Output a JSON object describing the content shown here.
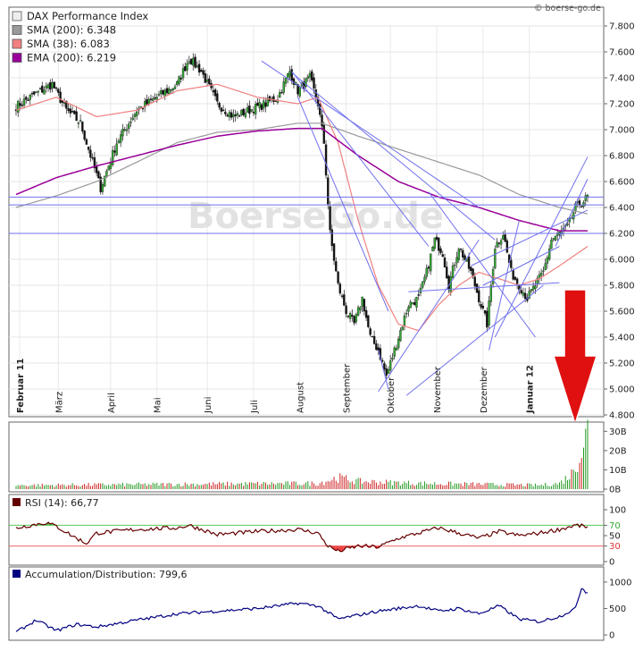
{
  "watermark": "© boerse-go.de",
  "background_logo": "BoerseGo.de",
  "chart_data": [
    {
      "type": "candlestick",
      "legend": [
        {
          "label": "DAX Performance Index",
          "color": "#eeeeee"
        },
        {
          "label": "SMA (200): 6.348",
          "color": "#999999"
        },
        {
          "label": "SMA (38): 6.083",
          "color": "#f08080"
        },
        {
          "label": "EMA (200): 6.219",
          "color": "#990099"
        }
      ],
      "ylim": [
        4800,
        7800
      ],
      "yticks": [
        "7.800",
        "7.600",
        "7.400",
        "7.200",
        "7.000",
        "6.800",
        "6.600",
        "6.400",
        "6.200",
        "6.000",
        "5.800",
        "5.600",
        "5.400",
        "5.200",
        "5.000",
        "4.800"
      ],
      "months": [
        {
          "label": "Februar 11",
          "bold": true
        },
        {
          "label": "März",
          "bold": false
        },
        {
          "label": "April",
          "bold": false
        },
        {
          "label": "Mai",
          "bold": false
        },
        {
          "label": "Juni",
          "bold": false
        },
        {
          "label": "Juli",
          "bold": false
        },
        {
          "label": "August",
          "bold": false
        },
        {
          "label": "September",
          "bold": false
        },
        {
          "label": "Oktober",
          "bold": false
        },
        {
          "label": "November",
          "bold": false
        },
        {
          "label": "Dezember",
          "bold": false
        },
        {
          "label": "Januar 12",
          "bold": true
        }
      ],
      "close_anchors": [
        [
          0,
          7180
        ],
        [
          10,
          7280
        ],
        [
          18,
          7350
        ],
        [
          25,
          7150
        ],
        [
          32,
          7050
        ],
        [
          38,
          6750
        ],
        [
          42,
          6550
        ],
        [
          50,
          6900
        ],
        [
          60,
          7150
        ],
        [
          70,
          7250
        ],
        [
          80,
          7350
        ],
        [
          86,
          7550
        ],
        [
          92,
          7450
        ],
        [
          100,
          7200
        ],
        [
          108,
          7100
        ],
        [
          116,
          7150
        ],
        [
          124,
          7200
        ],
        [
          130,
          7250
        ],
        [
          136,
          7450
        ],
        [
          140,
          7300
        ],
        [
          146,
          7400
        ],
        [
          150,
          7200
        ],
        [
          153,
          6900
        ],
        [
          156,
          6200
        ],
        [
          160,
          5800
        ],
        [
          164,
          5600
        ],
        [
          168,
          5500
        ],
        [
          172,
          5700
        ],
        [
          176,
          5400
        ],
        [
          180,
          5300
        ],
        [
          184,
          5100
        ],
        [
          190,
          5400
        ],
        [
          195,
          5650
        ],
        [
          200,
          5700
        ],
        [
          204,
          5900
        ],
        [
          208,
          6150
        ],
        [
          212,
          6050
        ],
        [
          215,
          5800
        ],
        [
          220,
          6100
        ],
        [
          226,
          5900
        ],
        [
          230,
          5700
        ],
        [
          234,
          5500
        ],
        [
          238,
          6100
        ],
        [
          242,
          6200
        ],
        [
          246,
          5900
        ],
        [
          250,
          5800
        ],
        [
          254,
          5700
        ],
        [
          258,
          5800
        ],
        [
          262,
          5900
        ],
        [
          266,
          6150
        ],
        [
          270,
          6200
        ],
        [
          274,
          6250
        ],
        [
          278,
          6400
        ],
        [
          282,
          6450
        ],
        [
          284,
          6480
        ]
      ],
      "sma200": [
        [
          0,
          6400
        ],
        [
          20,
          6490
        ],
        [
          40,
          6600
        ],
        [
          60,
          6750
        ],
        [
          80,
          6900
        ],
        [
          100,
          6980
        ],
        [
          120,
          7000
        ],
        [
          140,
          7050
        ],
        [
          152,
          7050
        ],
        [
          170,
          6950
        ],
        [
          190,
          6850
        ],
        [
          210,
          6750
        ],
        [
          230,
          6650
        ],
        [
          250,
          6500
        ],
        [
          270,
          6400
        ],
        [
          284,
          6350
        ]
      ],
      "sma38": [
        [
          0,
          7150
        ],
        [
          20,
          7250
        ],
        [
          40,
          7100
        ],
        [
          60,
          7150
        ],
        [
          80,
          7300
        ],
        [
          100,
          7350
        ],
        [
          120,
          7250
        ],
        [
          140,
          7200
        ],
        [
          150,
          7250
        ],
        [
          160,
          6900
        ],
        [
          170,
          6300
        ],
        [
          180,
          5800
        ],
        [
          190,
          5500
        ],
        [
          200,
          5450
        ],
        [
          210,
          5650
        ],
        [
          220,
          5800
        ],
        [
          230,
          5900
        ],
        [
          240,
          5850
        ],
        [
          250,
          5800
        ],
        [
          260,
          5850
        ],
        [
          270,
          5950
        ],
        [
          284,
          6100
        ]
      ],
      "ema200": [
        [
          0,
          6500
        ],
        [
          20,
          6630
        ],
        [
          40,
          6720
        ],
        [
          60,
          6800
        ],
        [
          80,
          6880
        ],
        [
          100,
          6950
        ],
        [
          120,
          6990
        ],
        [
          140,
          7010
        ],
        [
          152,
          7010
        ],
        [
          170,
          6800
        ],
        [
          190,
          6600
        ],
        [
          210,
          6480
        ],
        [
          230,
          6400
        ],
        [
          250,
          6300
        ],
        [
          270,
          6220
        ],
        [
          284,
          6220
        ]
      ],
      "hlines": [
        6480,
        6420,
        6200
      ],
      "trendlines": [
        [
          [
            122,
            7530
          ],
          [
            230,
            6400
          ]
        ],
        [
          [
            137,
            7440
          ],
          [
            238,
            6150
          ]
        ],
        [
          [
            137,
            7450
          ],
          [
            205,
            6100
          ]
        ],
        [
          [
            140,
            7250
          ],
          [
            185,
            5600
          ]
        ],
        [
          [
            180,
            5300
          ],
          [
            185,
            5000
          ]
        ],
        [
          [
            180,
            4980
          ],
          [
            230,
            6150
          ]
        ],
        [
          [
            194,
            4950
          ],
          [
            262,
            5800
          ]
        ],
        [
          [
            195,
            5750
          ],
          [
            270,
            5820
          ]
        ],
        [
          [
            205,
            6520
          ],
          [
            258,
            5400
          ]
        ],
        [
          [
            235,
            5300
          ],
          [
            250,
            6300
          ]
        ],
        [
          [
            232,
            5800
          ],
          [
            270,
            6100
          ]
        ],
        [
          [
            268,
            6100
          ],
          [
            284,
            6620
          ]
        ],
        [
          [
            238,
            5400
          ],
          [
            284,
            6790
          ]
        ],
        [
          [
            226,
            5950
          ],
          [
            284,
            6380
          ]
        ]
      ],
      "arrow_color": "#e01010",
      "color_up": "#33aa33",
      "color_down": "#111111",
      "line_color": "#7070ee"
    },
    {
      "type": "bar",
      "yticks": [
        "30B",
        "20B",
        "10B",
        "0B"
      ],
      "ylim": [
        0,
        32
      ],
      "anchors": [
        [
          0,
          2
        ],
        [
          150,
          3
        ],
        [
          160,
          6
        ],
        [
          170,
          4
        ],
        [
          200,
          3
        ],
        [
          260,
          2
        ],
        [
          270,
          3
        ],
        [
          276,
          8
        ],
        [
          280,
          18
        ],
        [
          284,
          30
        ]
      ]
    },
    {
      "type": "line",
      "label": "RSI (14): 66,77",
      "legend_color": "#660000",
      "yticks": [
        "100",
        "70",
        "50",
        "30",
        "0"
      ],
      "ylim": [
        0,
        100
      ],
      "lines": [
        70,
        30
      ],
      "anchors": [
        [
          0,
          65
        ],
        [
          10,
          72
        ],
        [
          15,
          75
        ],
        [
          20,
          68
        ],
        [
          30,
          45
        ],
        [
          35,
          35
        ],
        [
          40,
          55
        ],
        [
          60,
          62
        ],
        [
          80,
          65
        ],
        [
          86,
          70
        ],
        [
          100,
          52
        ],
        [
          120,
          58
        ],
        [
          140,
          62
        ],
        [
          150,
          55
        ],
        [
          155,
          30
        ],
        [
          160,
          20
        ],
        [
          170,
          30
        ],
        [
          180,
          28
        ],
        [
          190,
          45
        ],
        [
          200,
          55
        ],
        [
          210,
          65
        ],
        [
          220,
          55
        ],
        [
          230,
          45
        ],
        [
          240,
          58
        ],
        [
          250,
          50
        ],
        [
          260,
          55
        ],
        [
          270,
          62
        ],
        [
          278,
          70
        ],
        [
          284,
          66.77
        ]
      ]
    },
    {
      "type": "line",
      "label": "Accumulation/Distribution: 799,6",
      "legend_color": "#000080",
      "yticks": [
        "1000",
        "500",
        "0"
      ],
      "ylim": [
        0,
        1100
      ],
      "anchors": [
        [
          0,
          50
        ],
        [
          10,
          280
        ],
        [
          20,
          80
        ],
        [
          30,
          200
        ],
        [
          40,
          150
        ],
        [
          60,
          280
        ],
        [
          80,
          400
        ],
        [
          100,
          450
        ],
        [
          120,
          500
        ],
        [
          140,
          600
        ],
        [
          150,
          550
        ],
        [
          160,
          300
        ],
        [
          180,
          450
        ],
        [
          200,
          550
        ],
        [
          210,
          450
        ],
        [
          220,
          500
        ],
        [
          230,
          400
        ],
        [
          240,
          550
        ],
        [
          250,
          300
        ],
        [
          260,
          250
        ],
        [
          270,
          350
        ],
        [
          278,
          500
        ],
        [
          281,
          900
        ],
        [
          283,
          820
        ],
        [
          284,
          800
        ]
      ]
    }
  ]
}
